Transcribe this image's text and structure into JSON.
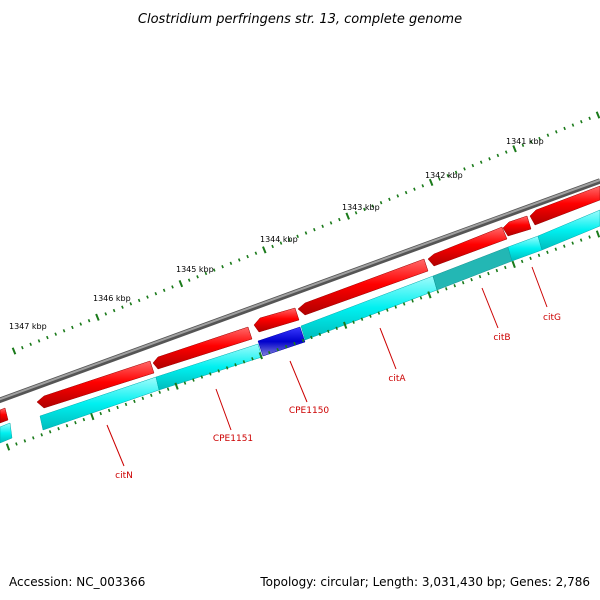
{
  "title": "Clostridium perfringens str. 13, complete genome",
  "footer": {
    "accession": "Accession: NC_003366",
    "summary": "Topology: circular; Length: 3,031,430 bp; Genes: 2,786"
  },
  "colors": {
    "backbone": "#808080",
    "forward_cds": "#ff0000",
    "reverse_cds": "#00e5e5",
    "highlight_cds": "#0000cc",
    "ticks": "#1a7a1a",
    "label": "#cc0000"
  },
  "kbp_labels": [
    "1341 kbp",
    "1342 kbp",
    "1343 kbp",
    "1344 kbp",
    "1345 kbp",
    "1346 kbp",
    "1347 kbp"
  ],
  "genes": [
    {
      "name": "citN"
    },
    {
      "name": "CPE1151"
    },
    {
      "name": "CPE1150"
    },
    {
      "name": "citA"
    },
    {
      "name": "citB"
    },
    {
      "name": "citG"
    }
  ]
}
